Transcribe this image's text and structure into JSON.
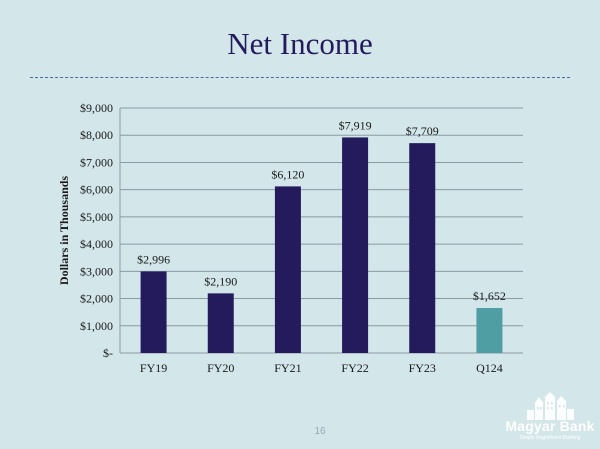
{
  "page": {
    "title": "Net Income",
    "page_number": "16",
    "logo": {
      "name": "Magyar Bank",
      "tagline": "Simply Magnificent Banking",
      "icon": "building-skyline-icon"
    }
  },
  "colors": {
    "background": "#d3e6ea",
    "title": "#241b5c",
    "bar_primary": "#241b5c",
    "bar_highlight": "#4f9ea4",
    "grid": "#8c9aa3"
  },
  "chart_data": {
    "type": "bar",
    "title": "",
    "xlabel": "",
    "ylabel": "Dollars in Thousands",
    "categories": [
      "FY19",
      "FY20",
      "FY21",
      "FY22",
      "FY23",
      "Q124"
    ],
    "values": [
      2996,
      2190,
      6120,
      7919,
      7709,
      1652
    ],
    "data_labels": [
      "$2,996",
      "$2,190",
      "$6,120",
      "$7,919",
      "$7,709",
      "$1,652"
    ],
    "highlight_index": 5,
    "ylim": [
      0,
      9000
    ],
    "y_ticks": [
      0,
      1000,
      2000,
      3000,
      4000,
      5000,
      6000,
      7000,
      8000,
      9000
    ],
    "y_tick_labels": [
      "$-",
      "$1,000",
      "$2,000",
      "$3,000",
      "$4,000",
      "$5,000",
      "$6,000",
      "$7,000",
      "$8,000",
      "$9,000"
    ],
    "grid": true,
    "legend": "none"
  }
}
